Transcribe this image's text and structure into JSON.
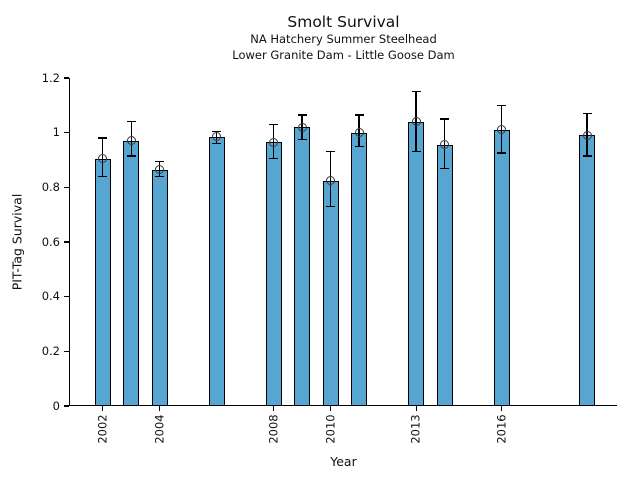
{
  "chart_data": {
    "type": "bar",
    "title": "Smolt Survival",
    "subtitles": [
      "NA Hatchery Summer Steelhead",
      "Lower Granite Dam - Little Goose Dam"
    ],
    "xlabel": "Year",
    "ylabel": "PIT-Tag Survival",
    "x": [
      2002,
      2003,
      2004,
      2006,
      2008,
      2009,
      2010,
      2011,
      2013,
      2014,
      2016,
      2019
    ],
    "values": [
      0.905,
      0.97,
      0.865,
      0.985,
      0.965,
      1.02,
      0.825,
      1.0,
      1.04,
      0.955,
      1.01,
      0.99
    ],
    "ci_low": [
      0.84,
      0.915,
      0.84,
      0.96,
      0.905,
      0.975,
      0.73,
      0.95,
      0.93,
      0.87,
      0.925,
      0.915
    ],
    "ci_high": [
      0.98,
      1.04,
      0.895,
      1.005,
      1.03,
      1.065,
      0.93,
      1.065,
      1.15,
      1.05,
      1.1,
      1.07
    ],
    "xlim": [
      2000.85,
      2020.05
    ],
    "ylim": [
      0,
      1.2
    ],
    "xticks": {
      "values": [
        2002,
        2004,
        2008,
        2010,
        2013,
        2016
      ],
      "labels": [
        "2002",
        "2004",
        "2008",
        "2010",
        "2013",
        "2016"
      ]
    },
    "yticks": {
      "values": [
        0,
        0.2,
        0.4,
        0.6,
        0.8,
        1,
        1.2
      ],
      "labels": [
        "0",
        "0.2",
        "0.4",
        "0.6",
        "0.8",
        "1",
        "1.2"
      ]
    },
    "bar_width_years": 0.55,
    "bar_color": "#57A5D1",
    "bar_edge_color": "#000000",
    "error_color": "#000000",
    "marker": "open-circle",
    "marker_color": "#3a3a3a",
    "grid": false,
    "legend": null
  }
}
